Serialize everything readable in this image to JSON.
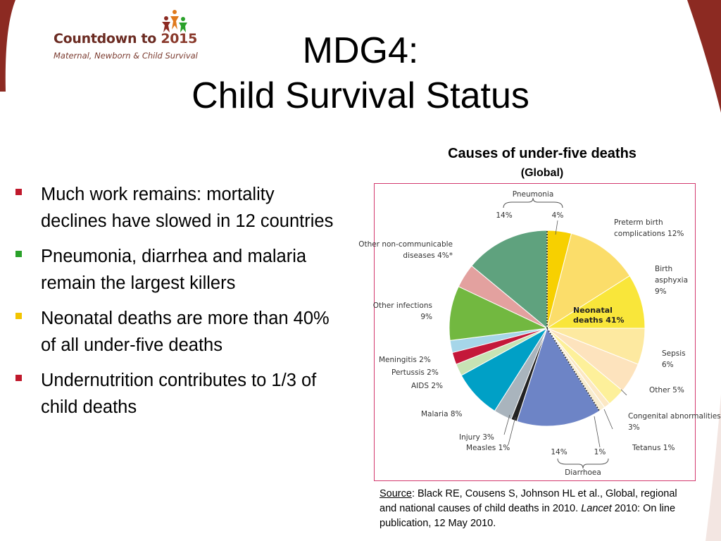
{
  "logo": {
    "title_main": "Countdown to ",
    "title_year": "2015",
    "subtitle": "Maternal, Newborn & Child Survival"
  },
  "title": {
    "line1": "MDG4:",
    "line2": "Child Survival Status"
  },
  "bullets": [
    {
      "text": "Much work remains: mortality declines have slowed in 12 countries",
      "marker_color": "#c0192c"
    },
    {
      "text": "Pneumonia, diarrhea and malaria remain the largest killers",
      "marker_color": "#2aa12a"
    },
    {
      "text": "Neonatal deaths are more than 40% of all under-five deaths",
      "marker_color": "#f2c400"
    },
    {
      "text": "Undernutrition contributes to 1/3 of child deaths",
      "marker_color": "#c0192c"
    }
  ],
  "chart_data": {
    "type": "pie",
    "title": "Causes of under-five deaths",
    "subtitle": "(Global)",
    "neonatal_group_label": "Neonatal deaths 41%",
    "group_braces": [
      {
        "label": "Pneumonia",
        "parts": [
          "14%",
          "4%"
        ]
      },
      {
        "label": "Diarrhoea",
        "parts": [
          "14%",
          "1%"
        ]
      }
    ],
    "slices": [
      {
        "label": "Pneumonia (neonatal)",
        "value": 4,
        "color": "#f7d000",
        "text": ""
      },
      {
        "label": "Preterm birth complications",
        "value": 12,
        "color": "#fbdd6a",
        "text": "Preterm birth complications 12%"
      },
      {
        "label": "Birth asphyxia",
        "value": 9,
        "color": "#f9e63a",
        "text": "Birth asphyxia 9%"
      },
      {
        "label": "Sepsis",
        "value": 6,
        "color": "#fde9a0",
        "text": "Sepsis 6%"
      },
      {
        "label": "Other",
        "value": 5,
        "color": "#fde3bd",
        "text": "Other 5%"
      },
      {
        "label": "Congenital abnormalities",
        "value": 3,
        "color": "#fdf09a",
        "text": "Congenital abnormalities 3%"
      },
      {
        "label": "Tetanus",
        "value": 1,
        "color": "#fce8c4",
        "text": "Tetanus 1%"
      },
      {
        "label": "Diarrhoea (neonatal)",
        "value": 1,
        "color": "#f9edd0",
        "text": ""
      },
      {
        "label": "Diarrhoea",
        "value": 14,
        "color": "#6d84c6",
        "text": ""
      },
      {
        "label": "Measles",
        "value": 1,
        "color": "#222222",
        "text": "Measles 1%"
      },
      {
        "label": "Injury",
        "value": 3,
        "color": "#a9b4bd",
        "text": "Injury 3%"
      },
      {
        "label": "Malaria",
        "value": 8,
        "color": "#00a0c6",
        "text": "Malaria 8%"
      },
      {
        "label": "AIDS",
        "value": 2,
        "color": "#c7e3b4",
        "text": "AIDS 2%"
      },
      {
        "label": "Pertussis",
        "value": 2,
        "color": "#c4183a",
        "text": "Pertussis 2%"
      },
      {
        "label": "Meningitis",
        "value": 2,
        "color": "#a6d6e9",
        "text": "Meningitis 2%"
      },
      {
        "label": "Other infections",
        "value": 9,
        "color": "#72b840",
        "text": "Other infections 9%"
      },
      {
        "label": "Other non-communicable diseases",
        "value": 4,
        "color": "#e3a19f",
        "text": "Other non-communicable diseases 4%*"
      },
      {
        "label": "Pneumonia",
        "value": 14,
        "color": "#5fa27e",
        "text": ""
      }
    ]
  },
  "source": {
    "label": "Source",
    "text_before": ":  Black RE, Cousens S, Johnson HL et al., Global, regional and national causes of child deaths in 2010. ",
    "journal": "Lancet",
    "text_after": " 2010: On line publication, 12 May 2010."
  }
}
